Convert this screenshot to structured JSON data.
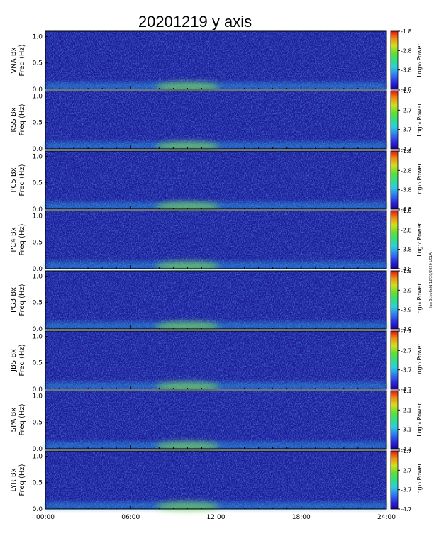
{
  "title": "20201219 y axis",
  "credit": "Ian Schofield 12/20/2020 UCLA",
  "chart_data": {
    "type": "heatmap",
    "title": "20201219 y axis",
    "x_ticks": [
      "00:00",
      "06:00",
      "12:00",
      "18:00",
      "24:00"
    ],
    "x_range_hours": [
      0,
      24
    ],
    "y_ticks": [
      "0.0",
      "0.5",
      "1.0"
    ],
    "y_range_hz": [
      0,
      1.1
    ],
    "colorbar_label": "Log₁₀ Power",
    "panels": [
      {
        "station": "VNA Bx",
        "ylabel_line1": "VNA Bx",
        "ylabel_line2": "Freq (Hz)",
        "cbar_ticks": [
          "-1.8",
          "-2.8",
          "-3.8",
          "-4.8"
        ],
        "cbar_range": [
          -4.8,
          -1.8
        ]
      },
      {
        "station": "KSS Bx",
        "ylabel_line1": "KSS Bx",
        "ylabel_line2": "Freq (Hz)",
        "cbar_ticks": [
          "-1.7",
          "-2.7",
          "-3.7",
          "-4.7"
        ],
        "cbar_range": [
          -4.7,
          -1.7
        ]
      },
      {
        "station": "PC5 Bx",
        "ylabel_line1": "PC5 Bx",
        "ylabel_line2": "Freq (Hz)",
        "cbar_ticks": [
          "-1.8",
          "-2.8",
          "-3.8",
          "-4.8"
        ],
        "cbar_range": [
          -4.8,
          -1.8
        ]
      },
      {
        "station": "PC4 Bx",
        "ylabel_line1": "PC4 Bx",
        "ylabel_line2": "Freq (Hz)",
        "cbar_ticks": [
          "-1.8",
          "-2.8",
          "-3.8",
          "-4.8"
        ],
        "cbar_range": [
          -4.8,
          -1.8
        ]
      },
      {
        "station": "PG3 Bx",
        "ylabel_line1": "PG3 Bx",
        "ylabel_line2": "Freq (Hz)",
        "cbar_ticks": [
          "-1.9",
          "-2.9",
          "-3.9",
          "-4.9"
        ],
        "cbar_range": [
          -4.9,
          -1.9
        ]
      },
      {
        "station": "JBS Bx",
        "ylabel_line1": "JBS Bx",
        "ylabel_line2": "Freq (Hz)",
        "cbar_ticks": [
          "-1.7",
          "-2.7",
          "-3.7",
          "-4.7"
        ],
        "cbar_range": [
          -4.7,
          -1.7
        ]
      },
      {
        "station": "SPA Bx",
        "ylabel_line1": "SPA Bx",
        "ylabel_line2": "Freq (Hz)",
        "cbar_ticks": [
          "-1.1",
          "-2.1",
          "-3.1",
          "-4.1"
        ],
        "cbar_range": [
          -4.1,
          -1.1
        ]
      },
      {
        "station": "LYR Bx",
        "ylabel_line1": "LYR Bx",
        "ylabel_line2": "Freq (Hz)",
        "cbar_ticks": [
          "-1.7",
          "-2.7",
          "-3.7",
          "-4.7"
        ],
        "cbar_range": [
          -4.7,
          -1.7
        ]
      }
    ]
  }
}
